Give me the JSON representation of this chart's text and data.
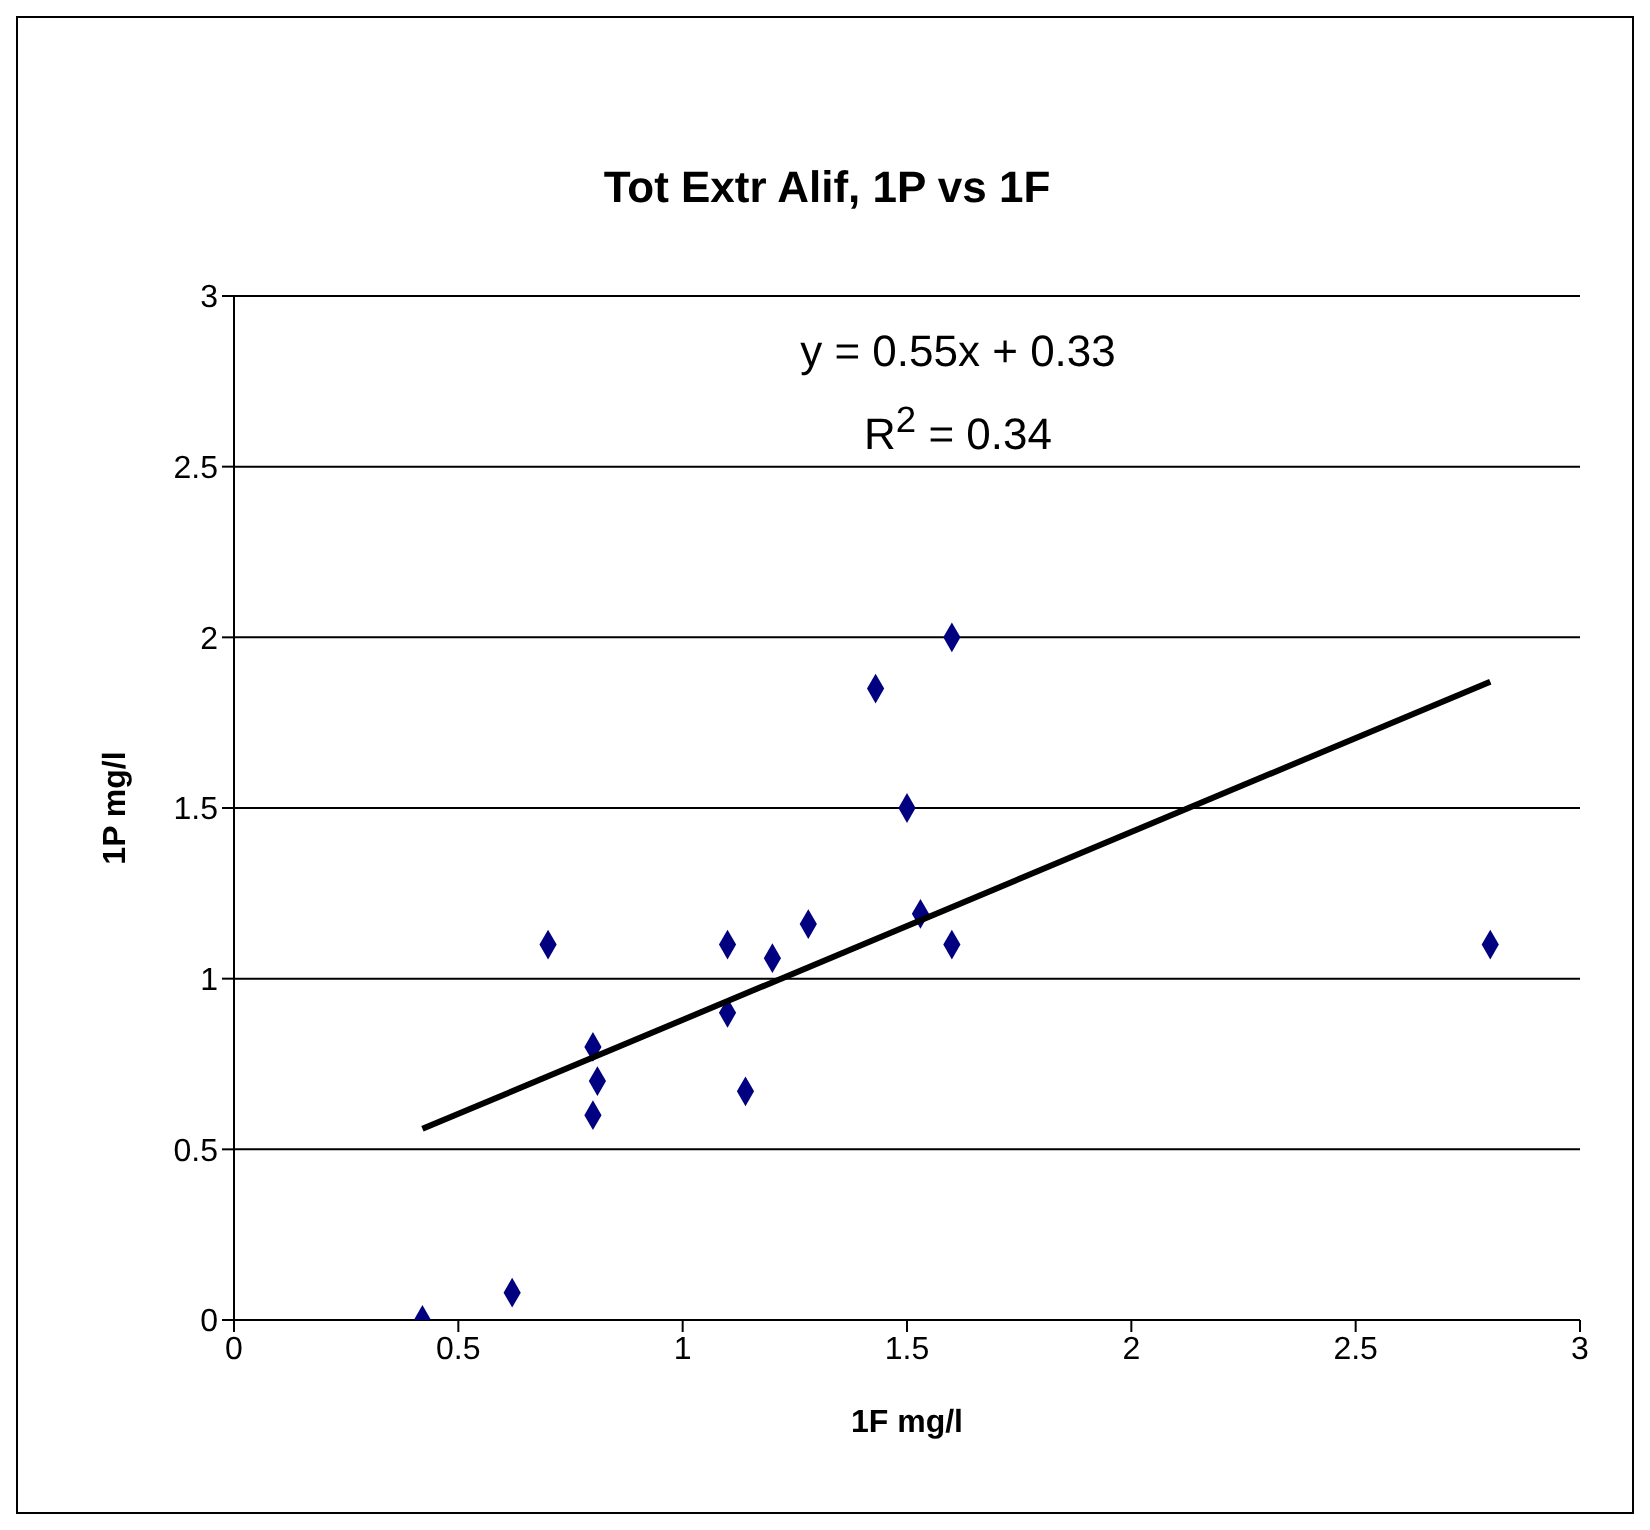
{
  "chart_data": {
    "type": "scatter",
    "title": "Tot Extr Alif, 1P vs 1F",
    "xlabel": "1F mg/l",
    "ylabel": "1P mg/l",
    "annotations": [
      "y = 0.55x + 0.33",
      "R$^{2}$ = 0.34"
    ],
    "xlim": [
      0,
      3
    ],
    "xticks": [
      0,
      0.5,
      1,
      1.5,
      2,
      2.5,
      3
    ],
    "ylim": [
      0,
      3
    ],
    "yticks": [
      0,
      0.5,
      1,
      1.5,
      2,
      2.5,
      3
    ],
    "grid": "y",
    "legend": false,
    "series": [
      {
        "marker": "diamond",
        "color": "#000080",
        "x": [
          0.42,
          0.62,
          0.7,
          0.8,
          0.81,
          0.8,
          1.1,
          1.1,
          1.14,
          1.2,
          1.28,
          1.43,
          1.5,
          1.53,
          1.6,
          1.6,
          2.8
        ],
        "values": [
          0,
          0.08,
          1.1,
          0.8,
          0.7,
          0.6,
          1.1,
          0.9,
          0.67,
          1.06,
          1.16,
          1.85,
          1.5,
          1.19,
          2,
          1.1,
          1.1
        ]
      },
      {
        "type": "line",
        "marker": "none",
        "color": "#000000",
        "x": [
          0.42,
          2.8
        ],
        "values": [
          0.56,
          1.87
        ]
      }
    ]
  }
}
